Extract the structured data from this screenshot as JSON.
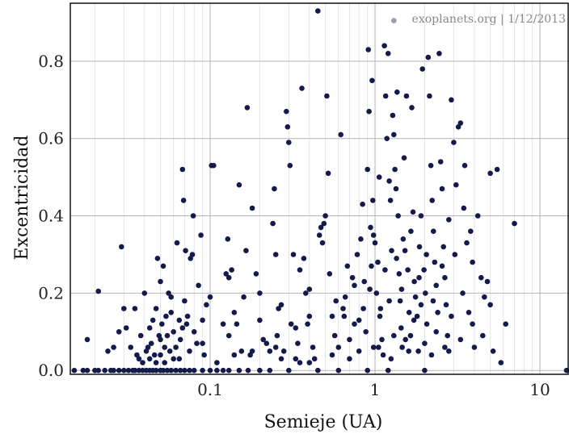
{
  "chart_data": {
    "type": "scatter",
    "title": "",
    "xlabel": "Semieje (UA)",
    "ylabel": "Excentricidad",
    "xscale": "log",
    "xlim": [
      0.0142,
      15
    ],
    "ylim": [
      -0.01,
      0.95
    ],
    "x_tick_labels": [
      "0.1",
      "1",
      "10"
    ],
    "y_tick_labels": [
      "0.0",
      "0.2",
      "0.4",
      "0.6",
      "0.8"
    ],
    "grid": true,
    "marker_color": "#141a4a",
    "credit": "exoplanets.org | 1/12/2013",
    "points": [
      [
        0.015,
        0.0
      ],
      [
        0.017,
        0.0
      ],
      [
        0.018,
        0.0
      ],
      [
        0.02,
        0.0
      ],
      [
        0.021,
        0.0
      ],
      [
        0.023,
        0.0
      ],
      [
        0.025,
        0.0
      ],
      [
        0.026,
        0.0
      ],
      [
        0.028,
        0.0
      ],
      [
        0.03,
        0.0
      ],
      [
        0.032,
        0.0
      ],
      [
        0.034,
        0.0
      ],
      [
        0.035,
        0.0
      ],
      [
        0.037,
        0.0
      ],
      [
        0.039,
        0.0
      ],
      [
        0.041,
        0.0
      ],
      [
        0.043,
        0.0
      ],
      [
        0.045,
        0.0
      ],
      [
        0.047,
        0.0
      ],
      [
        0.05,
        0.0
      ],
      [
        0.052,
        0.0
      ],
      [
        0.055,
        0.0
      ],
      [
        0.058,
        0.0
      ],
      [
        0.062,
        0.0
      ],
      [
        0.066,
        0.0
      ],
      [
        0.07,
        0.0
      ],
      [
        0.075,
        0.0
      ],
      [
        0.08,
        0.0
      ],
      [
        0.09,
        0.0
      ],
      [
        0.1,
        0.0
      ],
      [
        0.11,
        0.0
      ],
      [
        0.12,
        0.0
      ],
      [
        0.13,
        0.0
      ],
      [
        0.15,
        0.0
      ],
      [
        0.17,
        0.0
      ],
      [
        0.2,
        0.0
      ],
      [
        0.23,
        0.0
      ],
      [
        0.3,
        0.0
      ],
      [
        0.45,
        0.0
      ],
      [
        0.6,
        0.0
      ],
      [
        0.9,
        0.0
      ],
      [
        1.2,
        0.0
      ],
      [
        2.0,
        0.0
      ],
      [
        14.5,
        0.0
      ],
      [
        0.018,
        0.08
      ],
      [
        0.021,
        0.205
      ],
      [
        0.024,
        0.05
      ],
      [
        0.026,
        0.06
      ],
      [
        0.028,
        0.1
      ],
      [
        0.029,
        0.32
      ],
      [
        0.03,
        0.16
      ],
      [
        0.031,
        0.11
      ],
      [
        0.033,
        0.06
      ],
      [
        0.035,
        0.16
      ],
      [
        0.036,
        0.04
      ],
      [
        0.037,
        0.03
      ],
      [
        0.038,
        0.09
      ],
      [
        0.039,
        0.02
      ],
      [
        0.04,
        0.2
      ],
      [
        0.041,
        0.05
      ],
      [
        0.042,
        0.06
      ],
      [
        0.043,
        0.03
      ],
      [
        0.044,
        0.07
      ],
      [
        0.045,
        0.13
      ],
      [
        0.046,
        0.04
      ],
      [
        0.047,
        0.16
      ],
      [
        0.048,
        0.29
      ],
      [
        0.049,
        0.09
      ],
      [
        0.05,
        0.23
      ],
      [
        0.051,
        0.12
      ],
      [
        0.052,
        0.27
      ],
      [
        0.053,
        0.06
      ],
      [
        0.054,
        0.14
      ],
      [
        0.055,
        0.09
      ],
      [
        0.056,
        0.2
      ],
      [
        0.057,
        0.05
      ],
      [
        0.058,
        0.15
      ],
      [
        0.06,
        0.1
      ],
      [
        0.062,
        0.06
      ],
      [
        0.063,
        0.33
      ],
      [
        0.065,
        0.13
      ],
      [
        0.066,
        0.08
      ],
      [
        0.068,
        0.52
      ],
      [
        0.069,
        0.44
      ],
      [
        0.07,
        0.18
      ],
      [
        0.071,
        0.31
      ],
      [
        0.072,
        0.12
      ],
      [
        0.073,
        0.14
      ],
      [
        0.075,
        0.05
      ],
      [
        0.076,
        0.29
      ],
      [
        0.078,
        0.3
      ],
      [
        0.079,
        0.4
      ],
      [
        0.08,
        0.1
      ],
      [
        0.083,
        0.07
      ],
      [
        0.085,
        0.22
      ],
      [
        0.088,
        0.35
      ],
      [
        0.09,
        0.13
      ],
      [
        0.095,
        0.17
      ],
      [
        0.1,
        0.19
      ],
      [
        0.102,
        0.53
      ],
      [
        0.105,
        0.53
      ],
      [
        0.12,
        0.12
      ],
      [
        0.125,
        0.25
      ],
      [
        0.128,
        0.34
      ],
      [
        0.13,
        0.24
      ],
      [
        0.135,
        0.26
      ],
      [
        0.14,
        0.15
      ],
      [
        0.145,
        0.12
      ],
      [
        0.15,
        0.48
      ],
      [
        0.155,
        0.05
      ],
      [
        0.16,
        0.19
      ],
      [
        0.165,
        0.31
      ],
      [
        0.168,
        0.68
      ],
      [
        0.175,
        0.04
      ],
      [
        0.18,
        0.42
      ],
      [
        0.19,
        0.25
      ],
      [
        0.2,
        0.2
      ],
      [
        0.21,
        0.08
      ],
      [
        0.22,
        0.07
      ],
      [
        0.23,
        0.05
      ],
      [
        0.24,
        0.38
      ],
      [
        0.245,
        0.47
      ],
      [
        0.25,
        0.3
      ],
      [
        0.255,
        0.09
      ],
      [
        0.26,
        0.16
      ],
      [
        0.27,
        0.03
      ],
      [
        0.28,
        0.05
      ],
      [
        0.29,
        0.67
      ],
      [
        0.295,
        0.63
      ],
      [
        0.3,
        0.59
      ],
      [
        0.305,
        0.53
      ],
      [
        0.31,
        0.12
      ],
      [
        0.32,
        0.3
      ],
      [
        0.33,
        0.11
      ],
      [
        0.34,
        0.07
      ],
      [
        0.35,
        0.26
      ],
      [
        0.36,
        0.73
      ],
      [
        0.37,
        0.29
      ],
      [
        0.38,
        0.2
      ],
      [
        0.39,
        0.12
      ],
      [
        0.4,
        0.14
      ],
      [
        0.42,
        0.06
      ],
      [
        0.43,
        0.03
      ],
      [
        0.45,
        0.93
      ],
      [
        0.46,
        0.35
      ],
      [
        0.47,
        0.37
      ],
      [
        0.48,
        0.33
      ],
      [
        0.49,
        0.38
      ],
      [
        0.5,
        0.4
      ],
      [
        0.51,
        0.71
      ],
      [
        0.52,
        0.51
      ],
      [
        0.53,
        0.25
      ],
      [
        0.55,
        0.14
      ],
      [
        0.57,
        0.09
      ],
      [
        0.6,
        0.06
      ],
      [
        0.62,
        0.61
      ],
      [
        0.64,
        0.16
      ],
      [
        0.66,
        0.19
      ],
      [
        0.68,
        0.27
      ],
      [
        0.7,
        0.08
      ],
      [
        0.73,
        0.24
      ],
      [
        0.75,
        0.22
      ],
      [
        0.78,
        0.3
      ],
      [
        0.8,
        0.13
      ],
      [
        0.82,
        0.34
      ],
      [
        0.84,
        0.43
      ],
      [
        0.86,
        0.23
      ],
      [
        0.88,
        0.1
      ],
      [
        0.9,
        0.52
      ],
      [
        0.91,
        0.83
      ],
      [
        0.92,
        0.67
      ],
      [
        0.94,
        0.37
      ],
      [
        0.95,
        0.27
      ],
      [
        0.96,
        0.75
      ],
      [
        0.97,
        0.44
      ],
      [
        0.98,
        0.35
      ],
      [
        1.0,
        0.33
      ],
      [
        1.02,
        0.2
      ],
      [
        1.04,
        0.28
      ],
      [
        1.06,
        0.5
      ],
      [
        1.08,
        0.16
      ],
      [
        1.1,
        0.08
      ],
      [
        1.12,
        0.04
      ],
      [
        1.14,
        0.84
      ],
      [
        1.16,
        0.71
      ],
      [
        1.18,
        0.6
      ],
      [
        1.2,
        0.82
      ],
      [
        1.22,
        0.49
      ],
      [
        1.24,
        0.44
      ],
      [
        1.26,
        0.31
      ],
      [
        1.28,
        0.66
      ],
      [
        1.3,
        0.61
      ],
      [
        1.32,
        0.52
      ],
      [
        1.34,
        0.47
      ],
      [
        1.36,
        0.72
      ],
      [
        1.38,
        0.4
      ],
      [
        1.4,
        0.25
      ],
      [
        1.42,
        0.18
      ],
      [
        1.44,
        0.11
      ],
      [
        1.46,
        0.06
      ],
      [
        1.48,
        0.34
      ],
      [
        1.5,
        0.55
      ],
      [
        1.52,
        0.31
      ],
      [
        1.55,
        0.71
      ],
      [
        1.58,
        0.26
      ],
      [
        1.61,
        0.15
      ],
      [
        1.64,
        0.09
      ],
      [
        1.67,
        0.68
      ],
      [
        1.7,
        0.41
      ],
      [
        1.73,
        0.23
      ],
      [
        1.76,
        0.19
      ],
      [
        1.8,
        0.14
      ],
      [
        1.83,
        0.05
      ],
      [
        1.86,
        0.32
      ],
      [
        1.9,
        0.4
      ],
      [
        1.94,
        0.78
      ],
      [
        1.98,
        0.26
      ],
      [
        2.02,
        0.2
      ],
      [
        2.06,
        0.12
      ],
      [
        2.1,
        0.81
      ],
      [
        2.14,
        0.71
      ],
      [
        2.18,
        0.53
      ],
      [
        2.22,
        0.44
      ],
      [
        2.26,
        0.36
      ],
      [
        2.3,
        0.28
      ],
      [
        2.35,
        0.22
      ],
      [
        2.4,
        0.15
      ],
      [
        2.45,
        0.82
      ],
      [
        2.5,
        0.54
      ],
      [
        2.55,
        0.47
      ],
      [
        2.6,
        0.32
      ],
      [
        2.65,
        0.24
      ],
      [
        2.7,
        0.17
      ],
      [
        2.75,
        0.09
      ],
      [
        2.8,
        0.39
      ],
      [
        2.9,
        0.7
      ],
      [
        3.0,
        0.59
      ],
      [
        3.1,
        0.48
      ],
      [
        3.2,
        0.63
      ],
      [
        3.3,
        0.64
      ],
      [
        3.4,
        0.2
      ],
      [
        3.5,
        0.53
      ],
      [
        3.6,
        0.33
      ],
      [
        3.7,
        0.15
      ],
      [
        3.8,
        0.36
      ],
      [
        3.9,
        0.28
      ],
      [
        4.0,
        0.06
      ],
      [
        4.2,
        0.4
      ],
      [
        4.4,
        0.24
      ],
      [
        4.6,
        0.19
      ],
      [
        4.8,
        0.23
      ],
      [
        5.0,
        0.51
      ],
      [
        5.2,
        0.05
      ],
      [
        5.5,
        0.52
      ],
      [
        5.8,
        0.02
      ],
      [
        6.2,
        0.12
      ],
      [
        7.0,
        0.38
      ],
      [
        0.047,
        0.02
      ],
      [
        0.05,
        0.04
      ],
      [
        0.053,
        0.02
      ],
      [
        0.06,
        0.03
      ],
      [
        0.065,
        0.03
      ],
      [
        0.092,
        0.04
      ],
      [
        0.11,
        0.02
      ],
      [
        0.14,
        0.04
      ],
      [
        0.18,
        0.05
      ],
      [
        0.25,
        0.06
      ],
      [
        0.35,
        0.02
      ],
      [
        0.55,
        0.04
      ],
      [
        0.7,
        0.03
      ],
      [
        0.8,
        0.05
      ],
      [
        1.05,
        0.06
      ],
      [
        1.25,
        0.03
      ],
      [
        1.6,
        0.05
      ],
      [
        2.2,
        0.04
      ],
      [
        2.8,
        0.05
      ],
      [
        3.3,
        0.08
      ],
      [
        0.043,
        0.11
      ],
      [
        0.05,
        0.08
      ],
      [
        0.058,
        0.19
      ],
      [
        0.068,
        0.11
      ],
      [
        0.09,
        0.07
      ],
      [
        0.13,
        0.09
      ],
      [
        0.2,
        0.13
      ],
      [
        0.27,
        0.17
      ],
      [
        0.4,
        0.21
      ],
      [
        0.58,
        0.18
      ],
      [
        0.75,
        0.12
      ],
      [
        0.85,
        0.16
      ],
      [
        1.15,
        0.26
      ],
      [
        1.35,
        0.29
      ],
      [
        1.45,
        0.21
      ],
      [
        1.65,
        0.36
      ],
      [
        1.85,
        0.24
      ],
      [
        2.05,
        0.3
      ],
      [
        2.25,
        0.18
      ],
      [
        2.55,
        0.27
      ],
      [
        3.05,
        0.3
      ],
      [
        3.45,
        0.42
      ],
      [
        3.9,
        0.12
      ],
      [
        4.5,
        0.09
      ],
      [
        5.0,
        0.17
      ],
      [
        0.93,
        0.21
      ],
      [
        1.07,
        0.14
      ],
      [
        1.22,
        0.18
      ],
      [
        1.53,
        0.08
      ],
      [
        1.72,
        0.13
      ],
      [
        2.0,
        0.07
      ],
      [
        2.35,
        0.1
      ],
      [
        2.65,
        0.06
      ],
      [
        1.9,
        0.17
      ],
      [
        2.9,
        0.14
      ],
      [
        0.98,
        0.06
      ],
      [
        1.3,
        0.09
      ],
      [
        0.65,
        0.14
      ],
      [
        0.4,
        0.02
      ],
      [
        0.33,
        0.03
      ]
    ],
    "highlight_points": [
      [
        1.3,
        0.905,
        "#9a9ab0"
      ]
    ]
  }
}
